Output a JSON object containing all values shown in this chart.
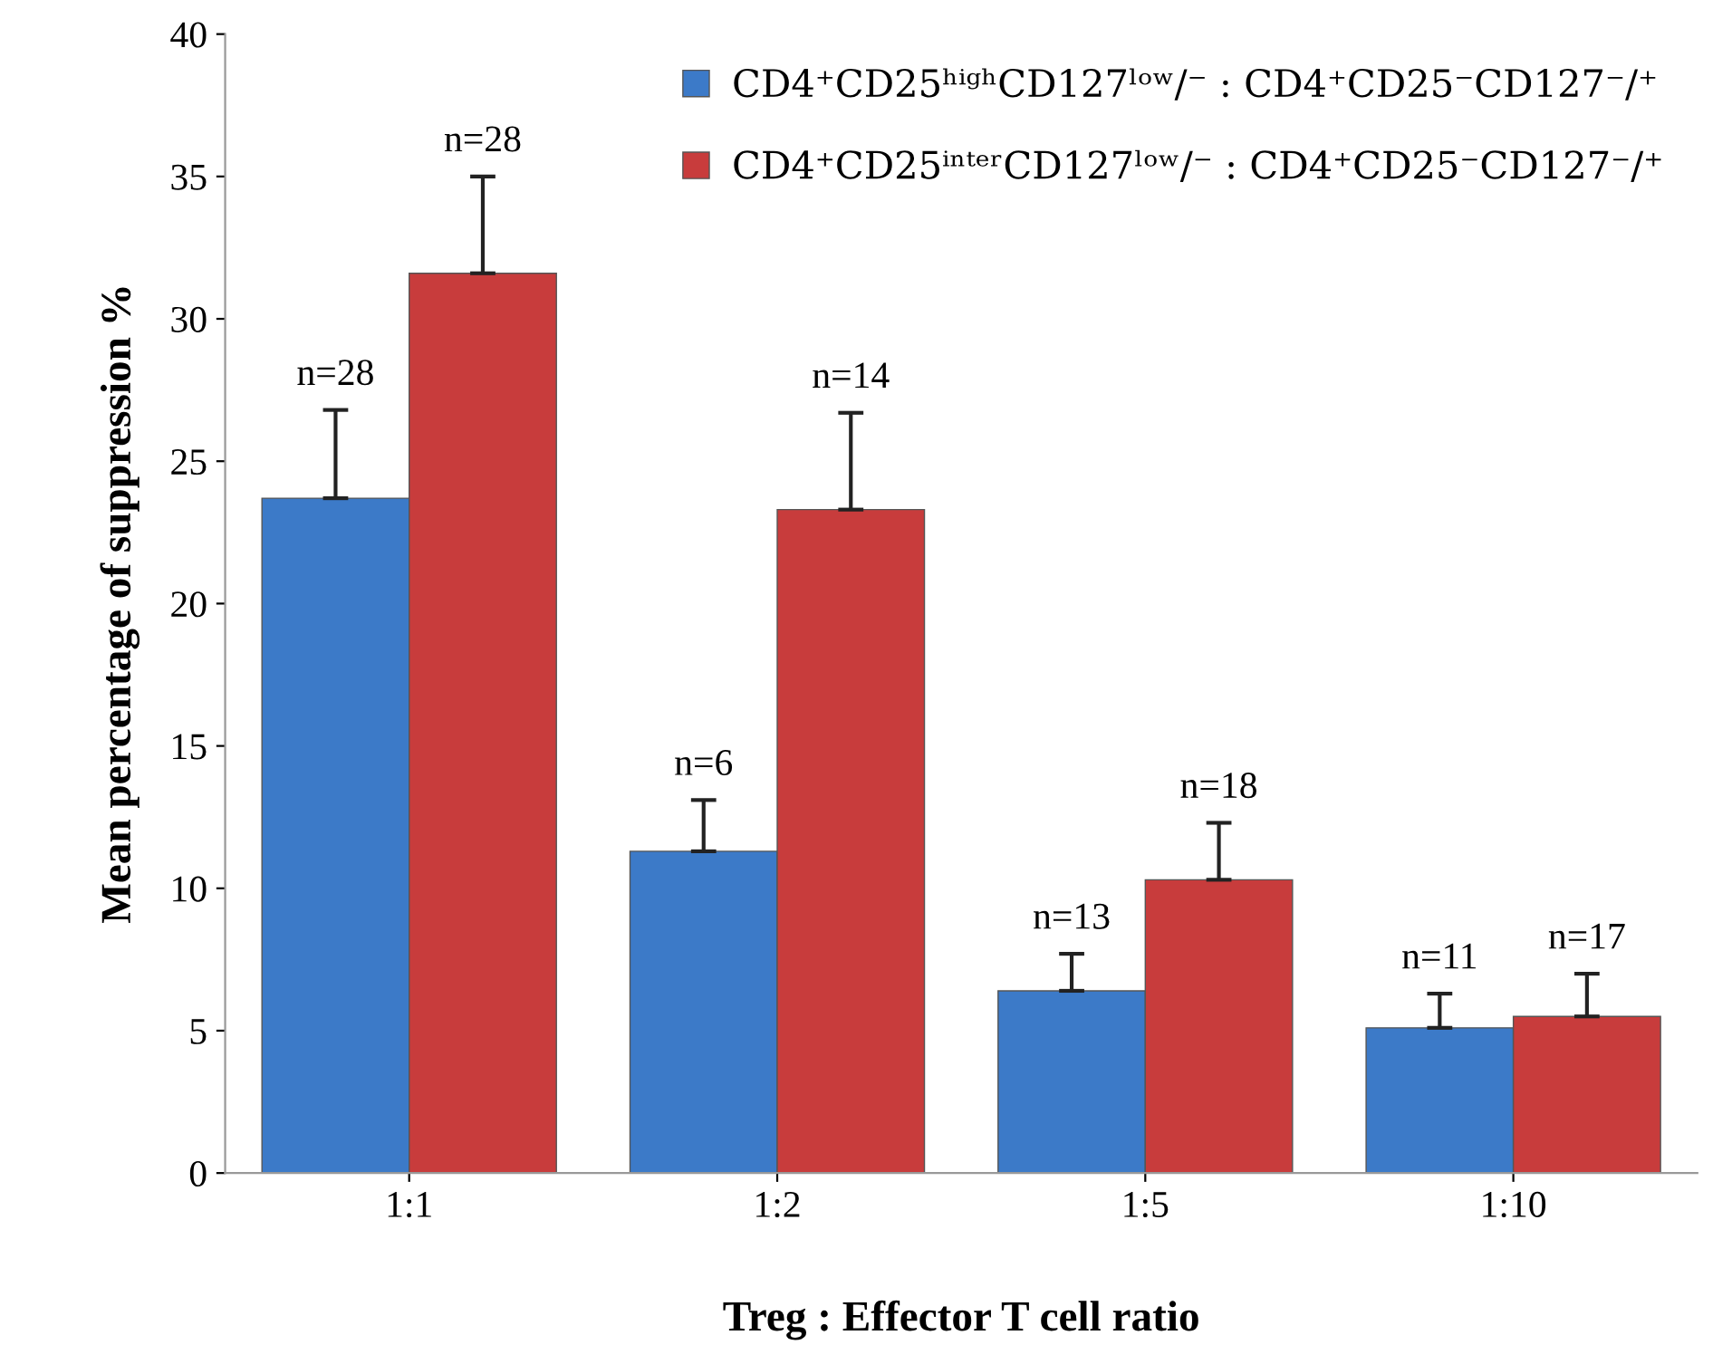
{
  "chart_data": {
    "type": "bar",
    "xlabel": "Treg : Effector T cell ratio",
    "ylabel": "Mean percentage of suppression %",
    "categories": [
      "1:1",
      "1:2",
      "1:5",
      "1:10"
    ],
    "series": [
      {
        "name": "CD4⁺CD25ʰⁱᵍʰCD127ˡᵒʷ/⁻ : CD4⁺CD25⁻CD127⁻/⁺",
        "color": "#3c7ac8",
        "values": [
          23.7,
          11.3,
          6.4,
          5.1
        ],
        "errors": [
          [
            23.7,
            26.8
          ],
          [
            11.3,
            13.1
          ],
          [
            6.4,
            7.7
          ],
          [
            5.1,
            6.3
          ]
        ]
      },
      {
        "name": "CD4⁺CD25ⁱⁿᵗᵉʳCD127ˡᵒʷ/⁻ : CD4⁺CD25⁻CD127⁻/⁺",
        "color": "#c83c3c",
        "values": [
          31.6,
          23.3,
          10.3,
          5.5
        ],
        "errors": [
          [
            31.6,
            35.0
          ],
          [
            23.3,
            26.7
          ],
          [
            10.3,
            12.3
          ],
          [
            5.5,
            7.0
          ]
        ]
      }
    ],
    "annotations": [
      "n=28",
      "n=6",
      "n=13",
      "n=11",
      "n=28",
      "n=14",
      "n=18",
      "n=17"
    ],
    "ylim": [
      0,
      40
    ],
    "yticks": [
      0,
      5,
      10,
      15,
      20,
      25,
      30,
      35,
      40
    ],
    "grid": false,
    "legend": "top right"
  }
}
